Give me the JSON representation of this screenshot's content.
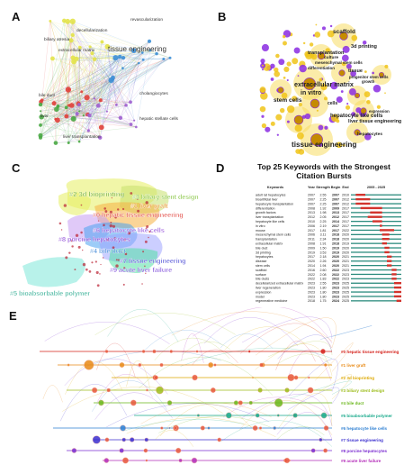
{
  "panel_labels": {
    "a": "A",
    "b": "B",
    "c": "C",
    "d": "D",
    "e": "E"
  },
  "colors": {
    "panel_a": [
      "#3d8fd6",
      "#e0403a",
      "#49a944",
      "#e3e34a",
      "#9f5fcf"
    ],
    "panel_b": {
      "node": "#f0c419",
      "node_alt": "#8a2be2",
      "halo": "#f7dc62"
    },
    "panel_c": [
      "#e6ee60",
      "#c6e06b",
      "#f5b041",
      "#c79df2",
      "#4aa3f0",
      "#53e0a6",
      "#a0a6ff",
      "#7ee8d8"
    ],
    "burst_bar": "#d2342d",
    "baseline_bar": "#2c8c7e"
  },
  "panel_a": {
    "labels": [
      "tissue engineering",
      "revascularization",
      "bile duct",
      "biliary atresia",
      "extracellular matrix",
      "cholangiocytes",
      "liver transplantation",
      "hepatic stellate cells",
      "decellularization",
      "liver"
    ]
  },
  "panel_b": {
    "labels": [
      "scaffold",
      "3d printing",
      "transplantation",
      "culture",
      "mesenchymal stem cells",
      "differentiation",
      "in vitro",
      "tissue",
      "extracellular matrix",
      "stem cells",
      "cells",
      "hepatocyte like cells",
      "liver tissue engineering",
      "tissue engineering",
      "hepatocytes",
      "growth",
      "expression",
      "progenitor stem cells"
    ]
  },
  "panel_c": {
    "clusters": [
      {
        "label": "#2 3d bioprinting",
        "color": "#6aaa1e"
      },
      {
        "label": "#3 biliary stent design",
        "color": "#7bbf30"
      },
      {
        "label": "#1 liver graft",
        "color": "#e78b1a"
      },
      {
        "label": "#0 hepatic tissue engineering",
        "color": "#e0403a"
      },
      {
        "label": "#6 hepatocyte like cells",
        "color": "#8a3fd6"
      },
      {
        "label": "#8 porcine hepatocytes",
        "color": "#7a2bd0"
      },
      {
        "label": "#4 bile duct",
        "color": "#2e7ed4"
      },
      {
        "label": "#7 tissue engineering",
        "color": "#3f3fd2"
      },
      {
        "label": "#9 acute liver failure",
        "color": "#7540d8"
      },
      {
        "label": "#5 bioabsorbable polymer",
        "color": "#26a98e"
      }
    ]
  },
  "panel_d": {
    "title": "Top 25 Keywords with the Strongest Citation Bursts",
    "columns": {
      "keywords": "Keywords",
      "year": "Year",
      "strength": "Strength",
      "begin": "Begin",
      "end": "End",
      "range": "2005 - 2025"
    },
    "rows": [
      {
        "keyword": "adult rat hepatocytes",
        "year": 2007,
        "strength": 2.55,
        "begin": 2007,
        "end": 2010
      },
      {
        "keyword": "bioartificial liver",
        "year": 2007,
        "strength": 2.25,
        "begin": 2007,
        "end": 2012
      },
      {
        "keyword": "hepatocyte transplantation",
        "year": 2007,
        "strength": 2.25,
        "begin": 2007,
        "end": 2012
      },
      {
        "keyword": "differentiation",
        "year": 2008,
        "strength": 1.92,
        "begin": 2009,
        "end": 2017
      },
      {
        "keyword": "growth factors",
        "year": 2013,
        "strength": 1.98,
        "begin": 2013,
        "end": 2017
      },
      {
        "keyword": "liver transplantation",
        "year": 2012,
        "strength": 2.05,
        "begin": 2012,
        "end": 2017
      },
      {
        "keyword": "hepatocyte like cells",
        "year": 2010,
        "strength": 2.25,
        "begin": 2014,
        "end": 2017
      },
      {
        "keyword": "in vitro",
        "year": 2006,
        "strength": 2.19,
        "begin": 2017,
        "end": 2017
      },
      {
        "keyword": "mouse",
        "year": 2017,
        "strength": 1.81,
        "begin": 2017,
        "end": 2022
      },
      {
        "keyword": "mesenchymal stem cells",
        "year": 2006,
        "strength": 3.11,
        "begin": 2018,
        "end": 2020
      },
      {
        "keyword": "transplantation",
        "year": 2011,
        "strength": 2.34,
        "begin": 2018,
        "end": 2020
      },
      {
        "keyword": "extracellular matrix",
        "year": 2008,
        "strength": 1.91,
        "begin": 2018,
        "end": 2019
      },
      {
        "keyword": "bile duct",
        "year": 2009,
        "strength": 1.5,
        "begin": 2019,
        "end": 2020
      },
      {
        "keyword": "3d printing",
        "year": 2019,
        "strength": 3.53,
        "begin": 2019,
        "end": 2020
      },
      {
        "keyword": "hepatocytes",
        "year": 2017,
        "strength": 2.18,
        "begin": 2020,
        "end": 2021
      },
      {
        "keyword": "disease",
        "year": 2020,
        "strength": 2.26,
        "begin": 2020,
        "end": 2021
      },
      {
        "keyword": "stem cells",
        "year": 2014,
        "strength": 1.94,
        "begin": 2020,
        "end": 2021
      },
      {
        "keyword": "scaffold",
        "year": 2016,
        "strength": 2.6,
        "begin": 2022,
        "end": 2023
      },
      {
        "keyword": "surface",
        "year": 2022,
        "strength": 2.08,
        "begin": 2022,
        "end": 2023
      },
      {
        "keyword": "bile ducts",
        "year": 2022,
        "strength": 1.83,
        "begin": 2022,
        "end": 2023
      },
      {
        "keyword": "decellularized extracellular matrix",
        "year": 2023,
        "strength": 2.55,
        "begin": 2023,
        "end": 2025
      },
      {
        "keyword": "liver regeneration",
        "year": 2023,
        "strength": 1.8,
        "begin": 2023,
        "end": 2025
      },
      {
        "keyword": "expression",
        "year": 2023,
        "strength": 1.8,
        "begin": 2023,
        "end": 2025
      },
      {
        "keyword": "model",
        "year": 2023,
        "strength": 1.8,
        "begin": 2023,
        "end": 2025
      },
      {
        "keyword": "regenerative medicine",
        "year": 2018,
        "strength": 1.75,
        "begin": 2024,
        "end": 2025
      }
    ]
  },
  "panel_e": {
    "legend": [
      {
        "label": "#0 hepatic tissue engineering",
        "color": "#d4201a"
      },
      {
        "label": "#1 liver graft",
        "color": "#e88a16"
      },
      {
        "label": "#2 3d bioprinting",
        "color": "#dda800"
      },
      {
        "label": "#3 biliary stent design",
        "color": "#9cbc1a"
      },
      {
        "label": "#4 bile duct",
        "color": "#6ab61a"
      },
      {
        "label": "#5 bioabsorbable polymer",
        "color": "#16a98a"
      },
      {
        "label": "#6 hepatocyte like cells",
        "color": "#2d7fd2"
      },
      {
        "label": "#7 tissue engineering",
        "color": "#3b2fcf"
      },
      {
        "label": "#8 porcine hepatocytes",
        "color": "#7a2bd0"
      },
      {
        "label": "#9 acute liver failure",
        "color": "#b32bb8"
      }
    ]
  }
}
